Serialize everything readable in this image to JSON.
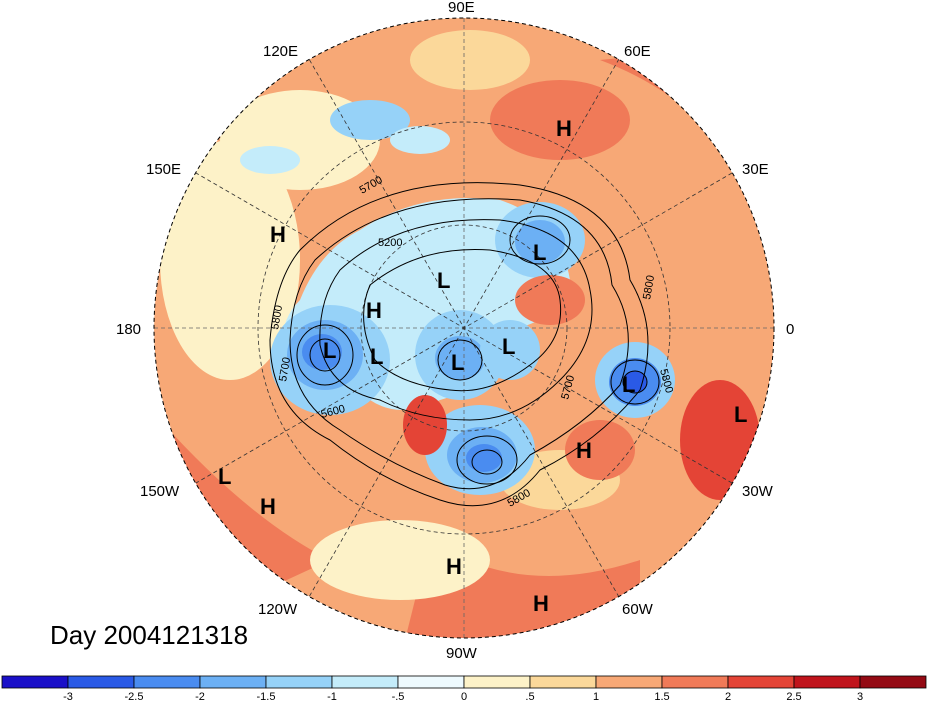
{
  "day_label": "Day 2004121318",
  "longitude_labels": {
    "lon_90e": "90E",
    "lon_60e": "60E",
    "lon_30e": "30E",
    "lon_0": "0",
    "lon_30w": "30W",
    "lon_60w": "60W",
    "lon_90w": "90W",
    "lon_120w": "120W",
    "lon_150w": "150W",
    "lon_180": "180",
    "lon_150e": "150E",
    "lon_120e": "120E"
  },
  "pressure_centers": [
    {
      "type": "H",
      "label": "H"
    },
    {
      "type": "H",
      "label": "H"
    },
    {
      "type": "H",
      "label": "H"
    },
    {
      "type": "H",
      "label": "H"
    },
    {
      "type": "H",
      "label": "H"
    },
    {
      "type": "H",
      "label": "H"
    },
    {
      "type": "H",
      "label": "H"
    },
    {
      "type": "L",
      "label": "L"
    },
    {
      "type": "L",
      "label": "L"
    },
    {
      "type": "L",
      "label": "L"
    },
    {
      "type": "L",
      "label": "L"
    },
    {
      "type": "L",
      "label": "L"
    },
    {
      "type": "L",
      "label": "L"
    },
    {
      "type": "L",
      "label": "L"
    },
    {
      "type": "L",
      "label": "L"
    },
    {
      "type": "L",
      "label": "L"
    }
  ],
  "contour_labels": [
    "5700",
    "5200",
    "5800",
    "5700",
    "5600",
    "5800",
    "5700",
    "5800",
    "5800"
  ],
  "colorbar": {
    "ticks": [
      "-3",
      "-2.5",
      "-2",
      "-1.5",
      "-1",
      "-.5",
      "0",
      ".5",
      "1",
      "1.5",
      "2",
      "2.5",
      "3"
    ],
    "colors": [
      "#1a10c8",
      "#2a5ae6",
      "#4a8cf0",
      "#6cb0f4",
      "#96d2f8",
      "#c4ecfa",
      "#eefafe",
      "#fdf2c8",
      "#fbd89a",
      "#f7a876",
      "#f07a58",
      "#e44436",
      "#c0141c",
      "#940a14"
    ]
  }
}
